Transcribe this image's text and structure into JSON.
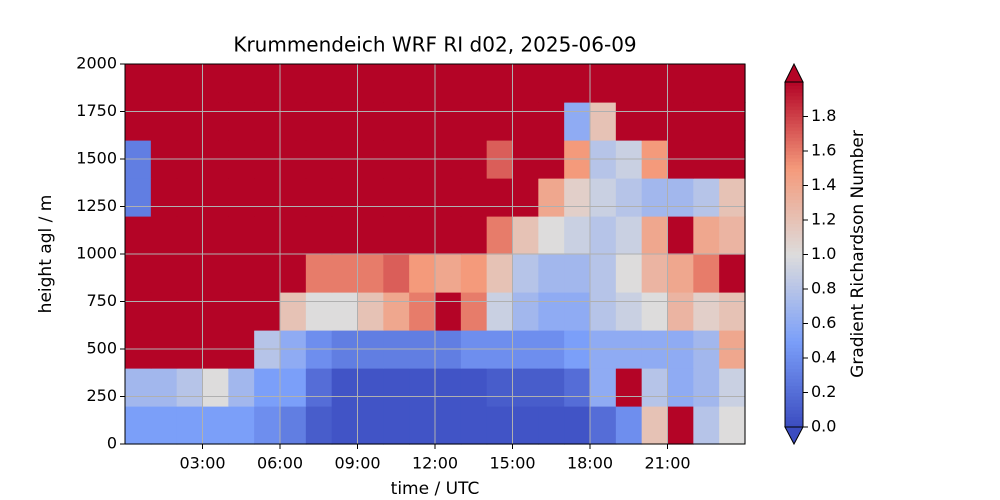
{
  "chart_data": {
    "type": "heatmap",
    "title": "Krummendeich WRF RI d02, 2025-06-09",
    "x_label": "time / UTC",
    "y_label": "height agl / m",
    "colorbar_label": "Gradient Richardson Number",
    "colormap": "coolwarm",
    "xlim": [
      0,
      24
    ],
    "xticks": [
      {
        "value": 3,
        "label": "03:00"
      },
      {
        "value": 6,
        "label": "06:00"
      },
      {
        "value": 9,
        "label": "09:00"
      },
      {
        "value": 12,
        "label": "12:00"
      },
      {
        "value": 15,
        "label": "15:00"
      },
      {
        "value": 18,
        "label": "18:00"
      },
      {
        "value": 21,
        "label": "21:00"
      }
    ],
    "ylim": [
      0,
      2000
    ],
    "yticks": [
      0,
      250,
      500,
      750,
      1000,
      1250,
      1500,
      1750,
      2000
    ],
    "clim": [
      0,
      2
    ],
    "cticks": [
      {
        "value": 0,
        "label": "0.0"
      },
      0.2,
      0.4,
      0.6,
      0.8,
      {
        "value": 1,
        "label": "1.0"
      },
      1.2,
      1.4,
      1.6,
      1.8
    ],
    "grid": true,
    "z": [
      [
        0.5,
        0.5,
        0.5,
        0.5,
        0.5,
        0.4,
        0.3,
        0.1,
        0.05,
        0.05,
        0.05,
        0.05,
        0.05,
        0.05,
        0.05,
        0.05,
        0.05,
        0.05,
        0.2,
        0.4,
        1.2,
        2,
        0.8,
        1.0
      ],
      [
        0.7,
        0.7,
        0.8,
        1.0,
        0.7,
        0.5,
        0.5,
        0.2,
        0.05,
        0.05,
        0.05,
        0.05,
        0.05,
        0.05,
        0.1,
        0.1,
        0.1,
        0.2,
        0.6,
        2,
        0.8,
        0.6,
        0.7,
        0.9
      ],
      [
        2,
        2,
        2,
        2,
        2,
        0.8,
        0.6,
        0.4,
        0.3,
        0.3,
        0.3,
        0.3,
        0.3,
        0.4,
        0.4,
        0.4,
        0.4,
        0.5,
        0.6,
        0.6,
        0.6,
        0.6,
        0.7,
        1.4
      ],
      [
        2,
        2,
        2,
        2,
        2,
        2,
        1.2,
        1.0,
        1.0,
        1.2,
        1.4,
        1.6,
        2,
        1.6,
        0.9,
        0.7,
        0.6,
        0.6,
        0.8,
        0.9,
        1.0,
        1.3,
        1.1,
        1.2
      ],
      [
        2,
        2,
        2,
        2,
        2,
        2,
        2,
        1.6,
        1.6,
        1.6,
        1.7,
        1.5,
        1.4,
        1.5,
        1.2,
        0.8,
        0.7,
        0.7,
        0.8,
        1.0,
        1.3,
        1.4,
        1.6,
        2
      ],
      [
        2,
        2,
        2,
        2,
        2,
        2,
        2,
        2,
        2,
        2,
        2,
        2,
        2,
        2,
        1.6,
        1.2,
        1.0,
        0.9,
        0.8,
        0.9,
        1.4,
        2,
        1.4,
        1.3
      ],
      [
        0.3,
        2,
        2,
        2,
        2,
        2,
        2,
        2,
        2,
        2,
        2,
        2,
        2,
        2,
        2,
        2,
        1.4,
        1.1,
        0.9,
        0.8,
        0.7,
        0.7,
        0.8,
        1.2
      ],
      [
        0.3,
        2,
        2,
        2,
        2,
        2,
        2,
        2,
        2,
        2,
        2,
        2,
        2,
        2,
        1.7,
        2,
        2,
        1.5,
        0.8,
        0.9,
        1.5,
        2,
        2,
        2
      ],
      [
        2,
        2,
        2,
        2,
        2,
        2,
        2,
        2,
        2,
        2,
        2,
        2,
        2,
        2,
        2,
        2,
        2,
        0.6,
        1.2,
        2,
        2,
        2,
        2,
        2
      ],
      [
        2,
        2,
        2,
        2,
        2,
        2,
        2,
        2,
        2,
        2,
        2,
        2,
        2,
        2,
        2,
        2,
        2,
        2,
        2,
        2,
        2,
        2,
        2,
        2
      ]
    ]
  }
}
